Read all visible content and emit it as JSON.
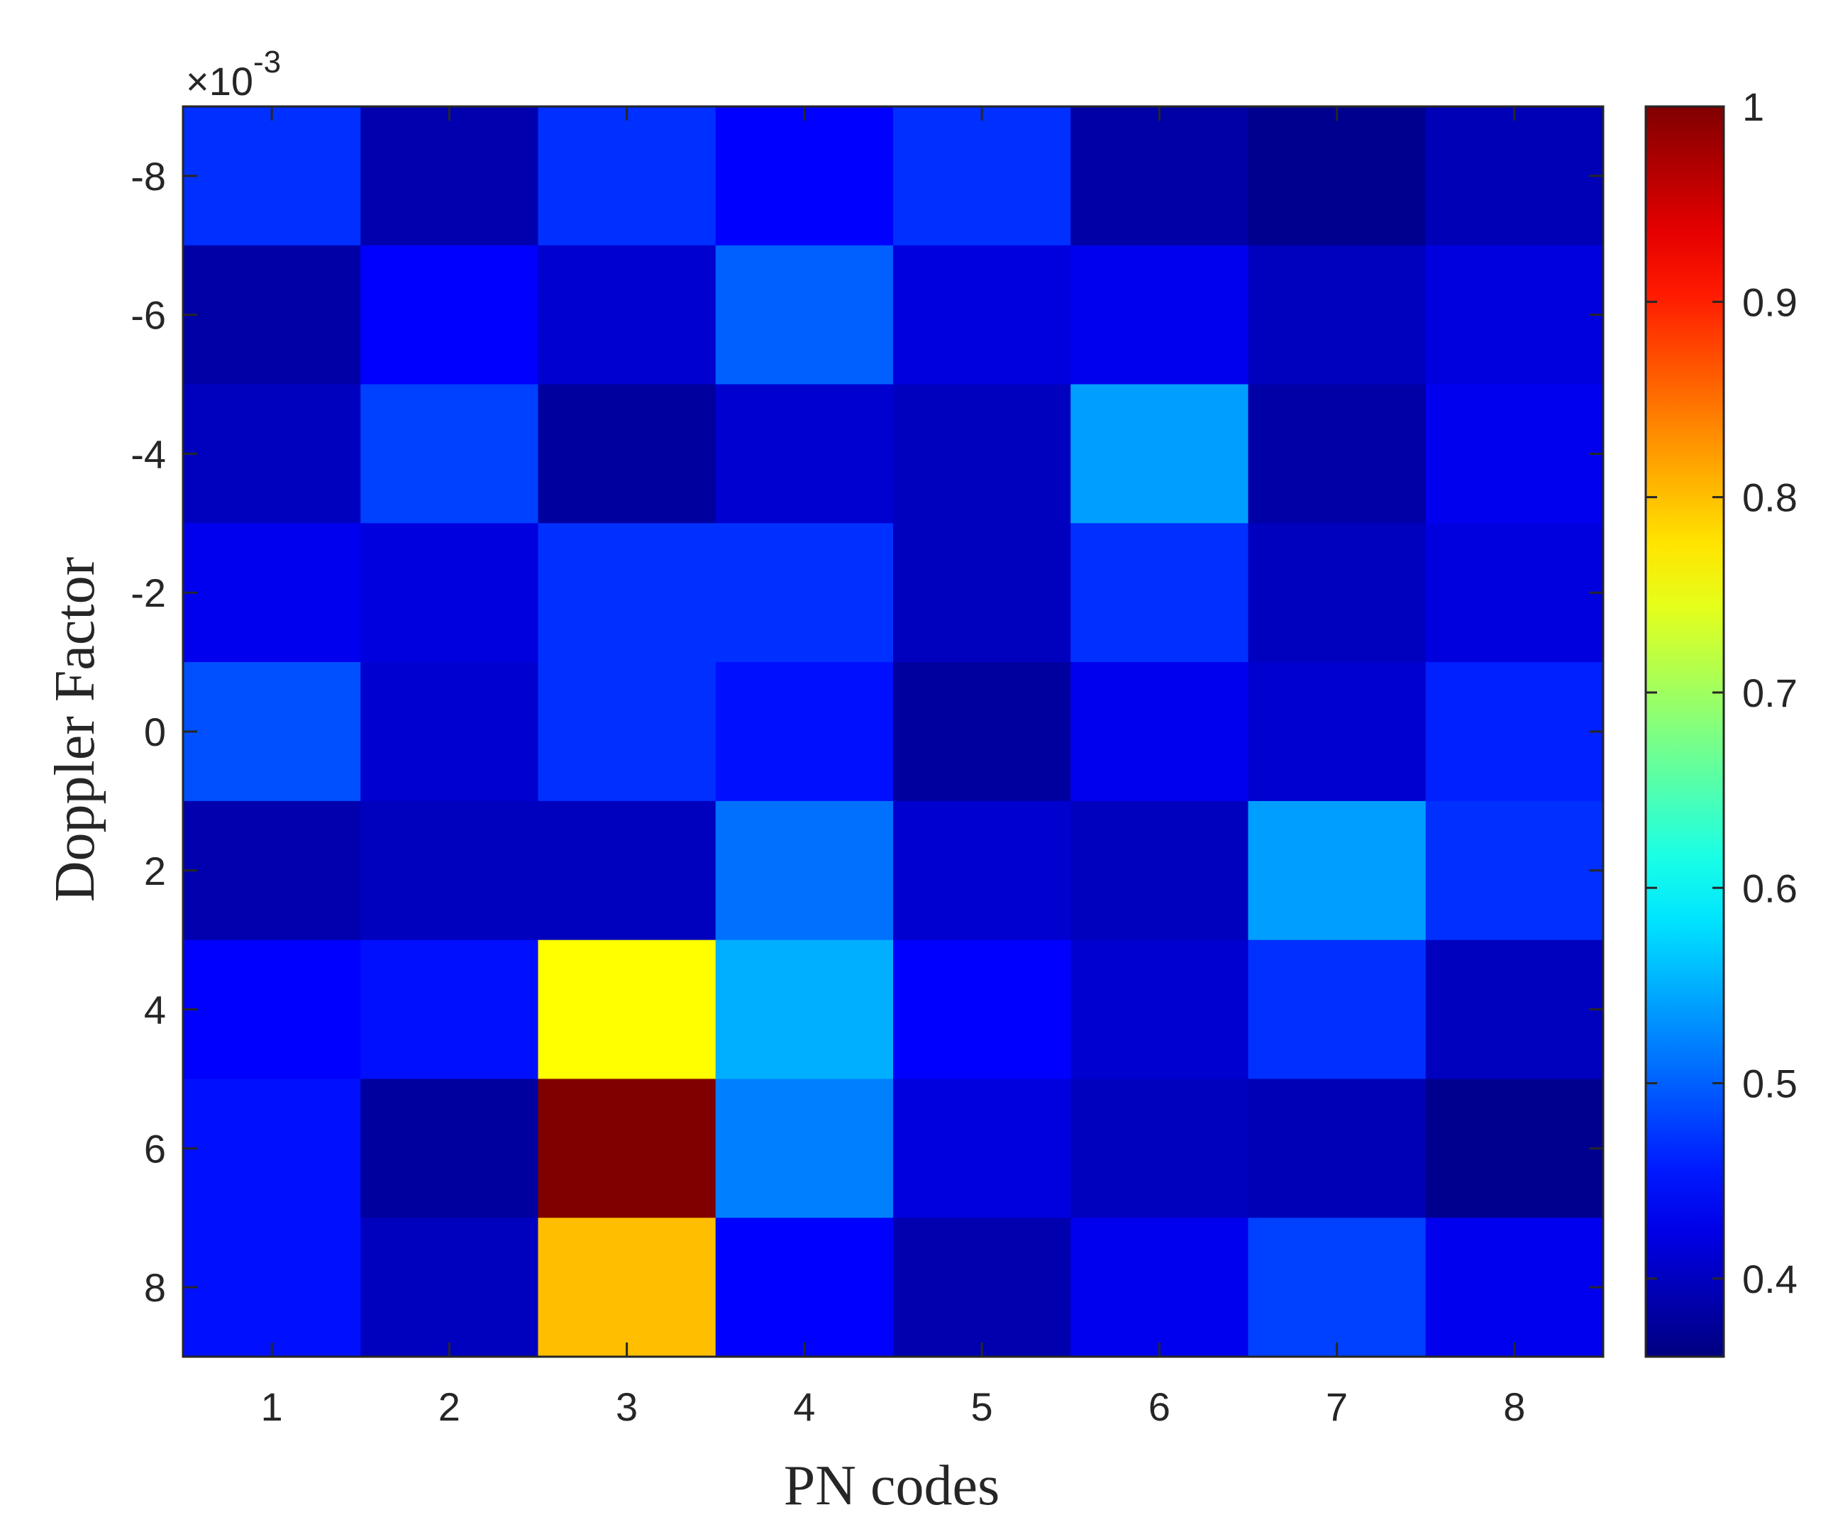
{
  "chart_data": {
    "type": "heatmap",
    "title": "",
    "xlabel": "PN codes",
    "ylabel": "Doppler Factor",
    "y_exponent_base": "×10",
    "y_exponent_power": "-3",
    "x_categories": [
      1,
      2,
      3,
      4,
      5,
      6,
      7,
      8
    ],
    "y_categories": [
      -8,
      -6,
      -4,
      -2,
      0,
      2,
      4,
      6,
      8
    ],
    "x_tick_labels": [
      "1",
      "2",
      "3",
      "4",
      "5",
      "6",
      "7",
      "8"
    ],
    "y_tick_labels": [
      "-8",
      "-6",
      "-4",
      "-2",
      "0",
      "2",
      "4",
      "6",
      "8"
    ],
    "values": [
      [
        0.47,
        0.39,
        0.47,
        0.44,
        0.47,
        0.385,
        0.37,
        0.395
      ],
      [
        0.385,
        0.44,
        0.41,
        0.5,
        0.42,
        0.43,
        0.4,
        0.42
      ],
      [
        0.4,
        0.48,
        0.38,
        0.41,
        0.4,
        0.54,
        0.385,
        0.43
      ],
      [
        0.43,
        0.42,
        0.47,
        0.47,
        0.4,
        0.47,
        0.4,
        0.42
      ],
      [
        0.49,
        0.41,
        0.47,
        0.45,
        0.38,
        0.43,
        0.41,
        0.46
      ],
      [
        0.39,
        0.4,
        0.4,
        0.51,
        0.41,
        0.4,
        0.54,
        0.47
      ],
      [
        0.44,
        0.45,
        0.76,
        0.55,
        0.44,
        0.41,
        0.47,
        0.4
      ],
      [
        0.45,
        0.38,
        1.0,
        0.52,
        0.42,
        0.4,
        0.395,
        0.37
      ],
      [
        0.45,
        0.4,
        0.8,
        0.44,
        0.39,
        0.43,
        0.48,
        0.43
      ]
    ],
    "colormap": "jet",
    "color_range": [
      0.36,
      1.0
    ],
    "colorbar_ticks": [
      0.4,
      0.5,
      0.6,
      0.7,
      0.8,
      0.9,
      1
    ],
    "colorbar_tick_labels": [
      "0.4",
      "0.5",
      "0.6",
      "0.7",
      "0.8",
      "0.9",
      "1"
    ]
  }
}
